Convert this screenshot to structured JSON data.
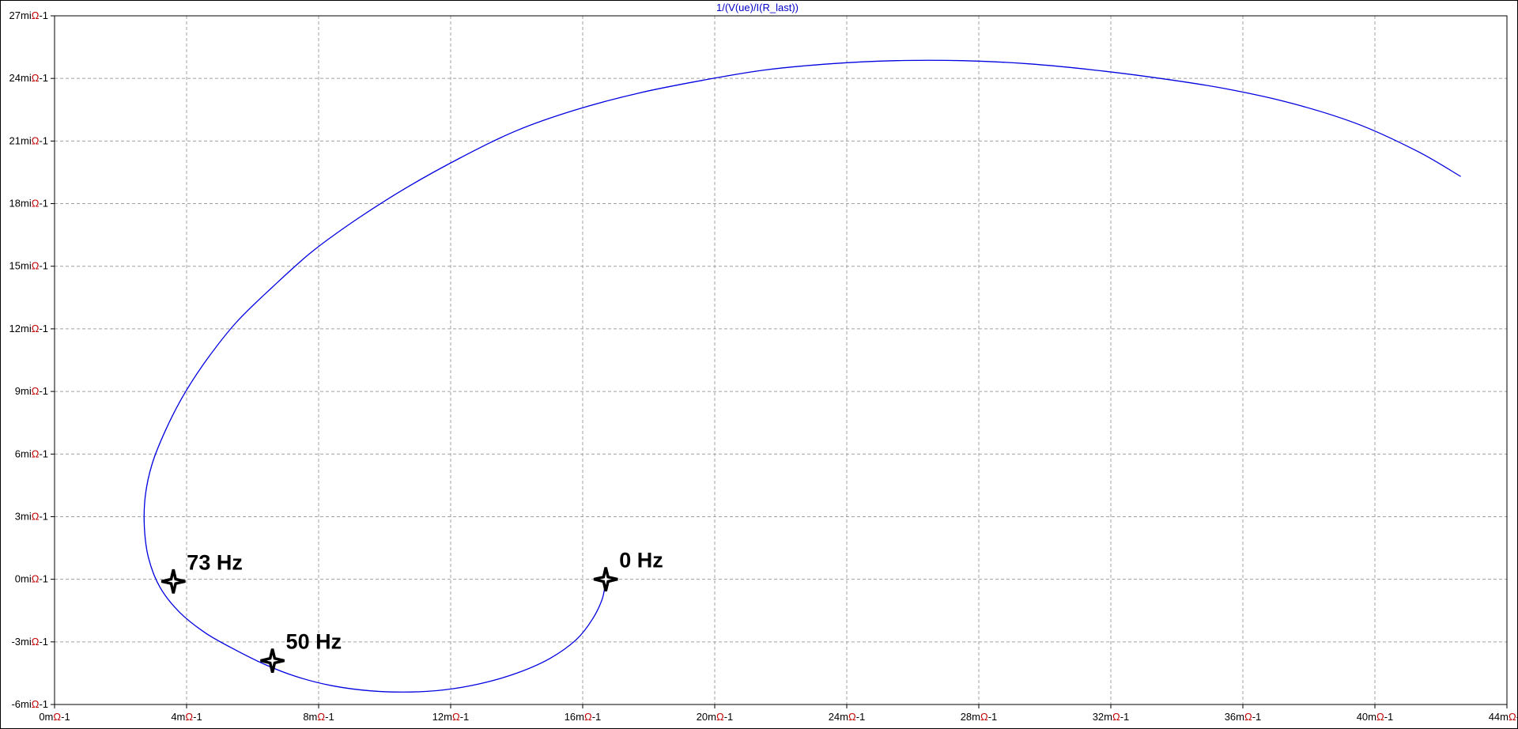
{
  "chart_data": {
    "type": "line",
    "title": "1/(V(ue)/I(R_last))",
    "xlim": [
      0,
      44
    ],
    "ylim": [
      -6,
      27
    ],
    "x_tick_values": [
      0,
      4,
      8,
      12,
      16,
      20,
      24,
      28,
      32,
      36,
      40,
      44
    ],
    "y_tick_values": [
      -6,
      -3,
      0,
      3,
      6,
      9,
      12,
      15,
      18,
      21,
      24,
      27
    ],
    "x_tick_labels": [
      {
        "prefix": "0m",
        "unit": "Ω",
        "suffix": "-1"
      },
      {
        "prefix": "4m",
        "unit": "Ω",
        "suffix": "-1"
      },
      {
        "prefix": "8m",
        "unit": "Ω",
        "suffix": "-1"
      },
      {
        "prefix": "12m",
        "unit": "Ω",
        "suffix": "-1"
      },
      {
        "prefix": "16m",
        "unit": "Ω",
        "suffix": "-1"
      },
      {
        "prefix": "20m",
        "unit": "Ω",
        "suffix": "-1"
      },
      {
        "prefix": "24m",
        "unit": "Ω",
        "suffix": "-1"
      },
      {
        "prefix": "28m",
        "unit": "Ω",
        "suffix": "-1"
      },
      {
        "prefix": "32m",
        "unit": "Ω",
        "suffix": "-1"
      },
      {
        "prefix": "36m",
        "unit": "Ω",
        "suffix": "-1"
      },
      {
        "prefix": "40m",
        "unit": "Ω",
        "suffix": "-1"
      },
      {
        "prefix": "44m",
        "unit": "Ω",
        "suffix": "-1"
      }
    ],
    "y_tick_labels": [
      {
        "prefix": "-6mi",
        "unit": "Ω",
        "suffix": "-1"
      },
      {
        "prefix": "-3mi",
        "unit": "Ω",
        "suffix": "-1"
      },
      {
        "prefix": "0mi",
        "unit": "Ω",
        "suffix": "-1"
      },
      {
        "prefix": "3mi",
        "unit": "Ω",
        "suffix": "-1"
      },
      {
        "prefix": "6mi",
        "unit": "Ω",
        "suffix": "-1"
      },
      {
        "prefix": "9mi",
        "unit": "Ω",
        "suffix": "-1"
      },
      {
        "prefix": "12mi",
        "unit": "Ω",
        "suffix": "-1"
      },
      {
        "prefix": "15mi",
        "unit": "Ω",
        "suffix": "-1"
      },
      {
        "prefix": "18mi",
        "unit": "Ω",
        "suffix": "-1"
      },
      {
        "prefix": "21mi",
        "unit": "Ω",
        "suffix": "-1"
      },
      {
        "prefix": "24mi",
        "unit": "Ω",
        "suffix": "-1"
      },
      {
        "prefix": "27mi",
        "unit": "Ω",
        "suffix": "-1"
      }
    ],
    "grid": true,
    "series": [
      {
        "color": "#0000e0",
        "x": [
          16.7,
          16.6,
          16.3,
          15.8,
          15.0,
          14.0,
          12.9,
          11.8,
          10.8,
          9.6,
          8.4,
          7.3,
          6.4,
          5.5,
          4.6,
          3.8,
          3.2,
          2.85,
          2.72,
          2.75,
          2.95,
          3.35,
          3.9,
          4.6,
          5.5,
          6.6,
          7.8,
          9.2,
          10.7,
          12.3,
          14.0,
          15.8,
          17.7,
          19.6,
          21.5,
          23.5,
          25.5,
          27.5,
          29.5,
          31.5,
          33.5,
          35.5,
          37.5,
          39.5,
          41.3,
          42.6
        ],
        "y": [
          0.0,
          -0.9,
          -1.9,
          -2.9,
          -3.8,
          -4.5,
          -5.0,
          -5.3,
          -5.4,
          -5.35,
          -5.1,
          -4.65,
          -4.1,
          -3.4,
          -2.6,
          -1.6,
          -0.4,
          1.0,
          2.5,
          4.0,
          5.5,
          7.1,
          8.8,
          10.5,
          12.3,
          14.0,
          15.7,
          17.3,
          18.8,
          20.2,
          21.5,
          22.5,
          23.3,
          23.9,
          24.4,
          24.7,
          24.85,
          24.85,
          24.7,
          24.4,
          24.0,
          23.5,
          22.8,
          21.8,
          20.5,
          19.3
        ]
      }
    ],
    "markers": [
      {
        "label": "0 Hz",
        "x": 16.7,
        "y": 0.0
      },
      {
        "label": "50 Hz",
        "x": 6.6,
        "y": -3.9
      },
      {
        "label": "73 Hz",
        "x": 3.6,
        "y": -0.1
      }
    ]
  }
}
